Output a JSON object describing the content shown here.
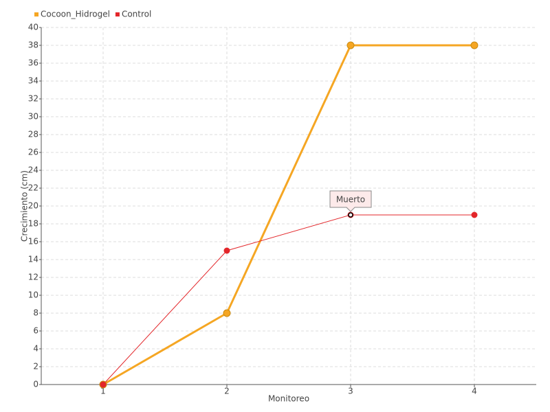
{
  "chart_data": {
    "type": "line",
    "x_label": "Monitoreo",
    "y_label": "Crecimiento (cm)",
    "categories": [
      "1",
      "2",
      "3",
      "4"
    ],
    "series": [
      {
        "name": "Cocoon_Hidrogel",
        "color": "#f5a623",
        "values": [
          0,
          8,
          38,
          38
        ]
      },
      {
        "name": "Control",
        "color": "#e3262a",
        "values": [
          0,
          15,
          19,
          19
        ]
      }
    ],
    "annotations": [
      {
        "text": "Muerto",
        "x": "3",
        "y": 19
      }
    ],
    "ylim": [
      0,
      40
    ],
    "yticks": [
      0,
      2,
      4,
      6,
      8,
      10,
      12,
      14,
      16,
      18,
      20,
      22,
      24,
      26,
      28,
      30,
      32,
      34,
      36,
      38,
      40
    ],
    "grid": true,
    "legend": "top-left"
  }
}
